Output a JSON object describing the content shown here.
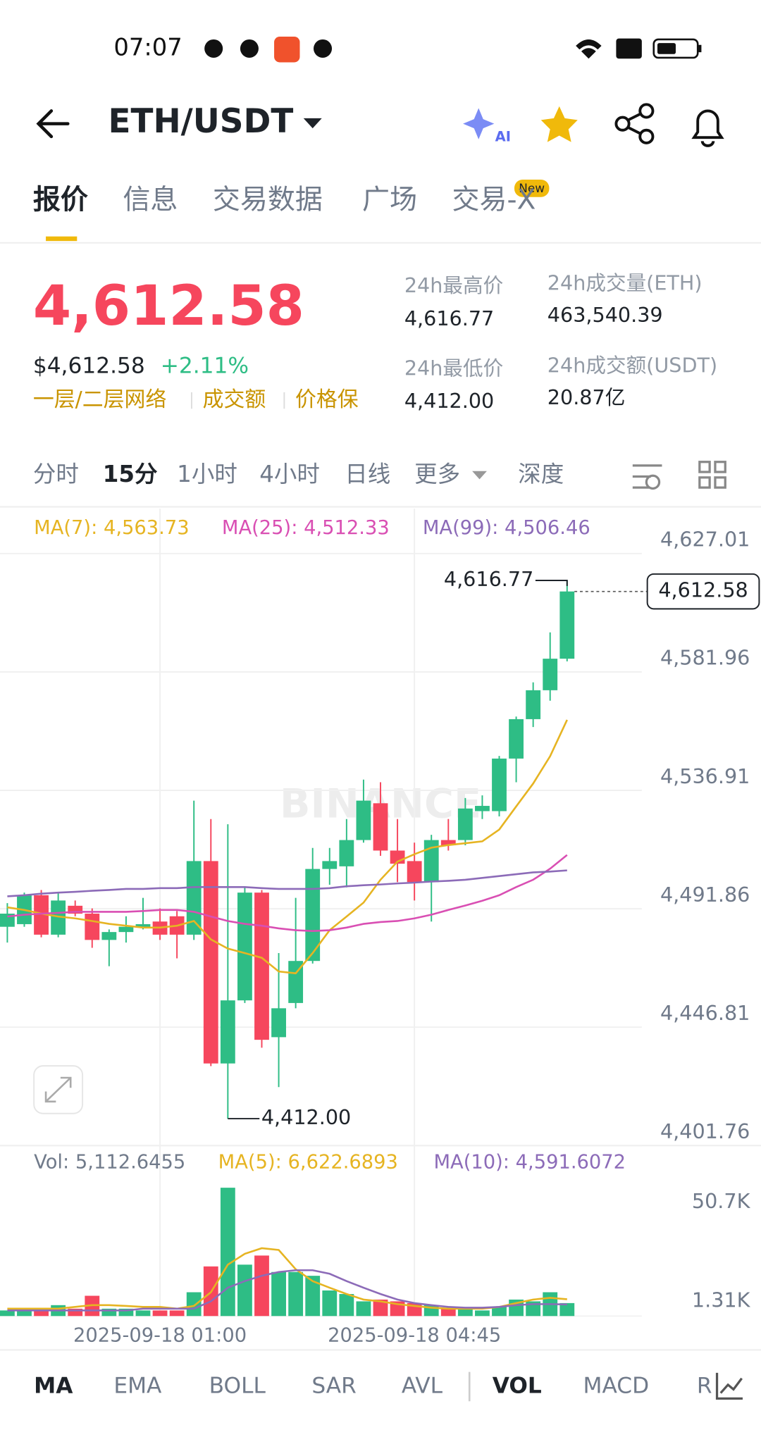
{
  "status_bar": {
    "time": "07:07"
  },
  "header": {
    "pair": "ETH/USDT",
    "ai": "AI"
  },
  "tabs": {
    "items": [
      "报价",
      "信息",
      "交易数据",
      "广场",
      "交易-X"
    ],
    "badge": "New"
  },
  "price": {
    "last": "4,612.58",
    "usd": "$4,612.58",
    "change": "+2.11%",
    "tags": [
      "一层/二层网络",
      "成交额",
      "价格保"
    ]
  },
  "stats": [
    {
      "label": "24h最高价",
      "value": "4,616.77"
    },
    {
      "label": "24h成交量(ETH)",
      "value": "463,540.39"
    },
    {
      "label": "24h最低价",
      "value": "4,412.00"
    },
    {
      "label": "24h成交额(USDT)",
      "value": "20.87亿"
    }
  ],
  "intervals": [
    "分时",
    "15分",
    "1小时",
    "4小时",
    "日线",
    "更多",
    "深度"
  ],
  "watermark": "BINANCE",
  "chart_data": [
    {
      "type": "candlestick",
      "up_color": "#2ebd85",
      "down_color": "#f6465d",
      "categories": [
        null,
        null,
        null,
        null,
        null,
        null,
        null,
        null,
        null,
        "2025-09-18 01:00",
        null,
        null,
        null,
        null,
        null,
        null,
        null,
        null,
        null,
        null,
        null,
        null,
        null,
        null,
        "2025-09-18 04:45",
        null,
        null,
        null,
        null,
        null,
        null,
        null,
        null,
        null
      ],
      "open": [
        4485,
        4486,
        4497,
        4482,
        4493,
        4490,
        4480,
        4483,
        4485,
        4487,
        4489,
        4482,
        4510,
        4433,
        4457,
        4498,
        4443,
        4456,
        4472,
        4507,
        4508,
        4518,
        4532,
        4514,
        4510,
        4502,
        4518,
        4518,
        4529,
        4529,
        4549,
        4564,
        4575,
        4587
      ],
      "high": [
        4494,
        4498,
        4499,
        4498,
        4495,
        4492,
        4484,
        4489,
        4496,
        4492,
        4491,
        4533,
        4526,
        4524,
        4500,
        4499,
        4475,
        4496,
        4515,
        4515,
        4526,
        4541,
        4540,
        4526,
        4517,
        4520,
        4526,
        4534,
        4535,
        4550,
        4565,
        4578,
        4597,
        4616.77
      ],
      "low": [
        4479,
        4485,
        4481,
        4481,
        4489,
        4477,
        4470,
        4479,
        4484,
        4480,
        4473,
        4480,
        4432,
        4412,
        4456,
        4439,
        4424,
        4454,
        4471,
        4501,
        4500,
        4517,
        4512,
        4502,
        4495,
        4487,
        4514,
        4516,
        4526,
        4527,
        4540,
        4561,
        4571,
        4586
      ],
      "close": [
        4490,
        4497,
        4482,
        4495,
        4490,
        4480,
        4483,
        4485,
        4486,
        4482,
        4482,
        4510,
        4433,
        4457,
        4498,
        4442,
        4454,
        4472,
        4507,
        4510,
        4518,
        4533,
        4514,
        4509,
        4502,
        4518,
        4516,
        4530,
        4531,
        4549,
        4564,
        4575,
        4587,
        4612.58
      ],
      "ylim": [
        4401.76,
        4627.01
      ],
      "yticks": [
        {
          "value": 4627.01,
          "label": "4,627.01"
        },
        {
          "value": 4581.96,
          "label": "4,581.96"
        },
        {
          "value": 4536.91,
          "label": "4,536.91"
        },
        {
          "value": 4491.86,
          "label": "4,491.86"
        },
        {
          "value": 4446.81,
          "label": "4,446.81"
        },
        {
          "value": 4401.76,
          "label": "4,401.76"
        }
      ],
      "grid": true,
      "series": [
        {
          "name": "MA(7): 4,563.73",
          "color": "#e6b422",
          "values": [
            4492.4,
            4491.4,
            4490.0,
            4488.9,
            4488.2,
            4487.2,
            4486.1,
            4485.4,
            4484.7,
            4484.7,
            4485.4,
            4487.2,
            4480.2,
            4476.7,
            4475.0,
            4473.2,
            4468.0,
            4467.3,
            4475.0,
            4483.7,
            4488.9,
            4494.2,
            4502.9,
            4509.8,
            4512.6,
            4515.1,
            4516.1,
            4516.8,
            4517.5,
            4522.0,
            4530.8,
            4539.5,
            4549.9,
            4563.73
          ]
        },
        {
          "name": "MA(25): 4,512.33",
          "color": "#d94fb3",
          "values": [
            4488.9,
            4489.6,
            4490.0,
            4490.3,
            4490.7,
            4490.7,
            4490.7,
            4490.7,
            4491.0,
            4491.4,
            4491.4,
            4490.7,
            4488.9,
            4487.2,
            4486.1,
            4485.4,
            4484.4,
            4483.7,
            4483.4,
            4483.7,
            4484.7,
            4486.1,
            4486.8,
            4487.2,
            4488.2,
            4489.6,
            4491.4,
            4493.1,
            4494.9,
            4497.0,
            4500.1,
            4502.9,
            4507.1,
            4512.33
          ]
        },
        {
          "name": "MA(99): 4,506.46",
          "color": "#8c6bb8",
          "values": [
            4496.6,
            4497.0,
            4497.6,
            4498.0,
            4498.3,
            4498.7,
            4499.0,
            4499.4,
            4499.4,
            4499.7,
            4499.7,
            4500.1,
            4500.1,
            4500.1,
            4500.1,
            4499.7,
            4499.4,
            4499.4,
            4499.4,
            4499.7,
            4500.4,
            4500.8,
            4501.1,
            4501.5,
            4501.8,
            4502.2,
            4502.5,
            4502.9,
            4503.6,
            4504.3,
            4505.0,
            4505.7,
            4506.0,
            4506.46
          ]
        }
      ],
      "high_label": {
        "value": 4616.77,
        "label": "4,616.77"
      },
      "low_label": {
        "value": 4412.0,
        "label": "4,412.00"
      },
      "last_price": {
        "value": 4612.58,
        "label": "4,612.58"
      }
    },
    {
      "type": "bar",
      "label": "Vol: 5,112.6455",
      "values": [
        2200,
        2200,
        2200,
        4300,
        2900,
        8000,
        2900,
        2900,
        2200,
        2200,
        2200,
        9400,
        19600,
        50700,
        20300,
        23900,
        17400,
        17400,
        15900,
        10100,
        8700,
        5800,
        6500,
        5800,
        5100,
        4300,
        2900,
        2900,
        2200,
        3600,
        6500,
        5800,
        9400,
        5112.6455
      ],
      "ylim": [
        0,
        50700
      ],
      "yticks": [
        {
          "value": 50700,
          "label": "50.7K"
        },
        {
          "value": 1310,
          "label": "1.31K"
        }
      ],
      "series": [
        {
          "name": "MA(5): 6,622.6893",
          "color": "#e6b422",
          "values": [
            2900,
            2900,
            2900,
            2900,
            3600,
            4300,
            4300,
            4000,
            3600,
            3600,
            2900,
            4000,
            9400,
            20300,
            24600,
            26800,
            26100,
            18500,
            13800,
            11200,
            8700,
            6500,
            5800,
            4700,
            4000,
            3300,
            2900,
            2900,
            2900,
            3600,
            5100,
            6500,
            7200,
            6622.6893
          ]
        },
        {
          "name": "MA(10): 4,591.6072",
          "color": "#8c6bb8",
          "values": [
            2200,
            2200,
            2200,
            2200,
            2200,
            2200,
            2200,
            2200,
            2900,
            2900,
            2900,
            2900,
            5800,
            11200,
            13800,
            15900,
            17400,
            18100,
            18100,
            16700,
            13800,
            11200,
            8700,
            6500,
            5100,
            4300,
            3600,
            3300,
            3300,
            3600,
            4300,
            4700,
            4700,
            4591.6072
          ]
        }
      ]
    }
  ],
  "indicator_tabs": [
    "MA",
    "EMA",
    "BOLL",
    "SAR",
    "AVL",
    "VOL",
    "MACD",
    "R"
  ]
}
